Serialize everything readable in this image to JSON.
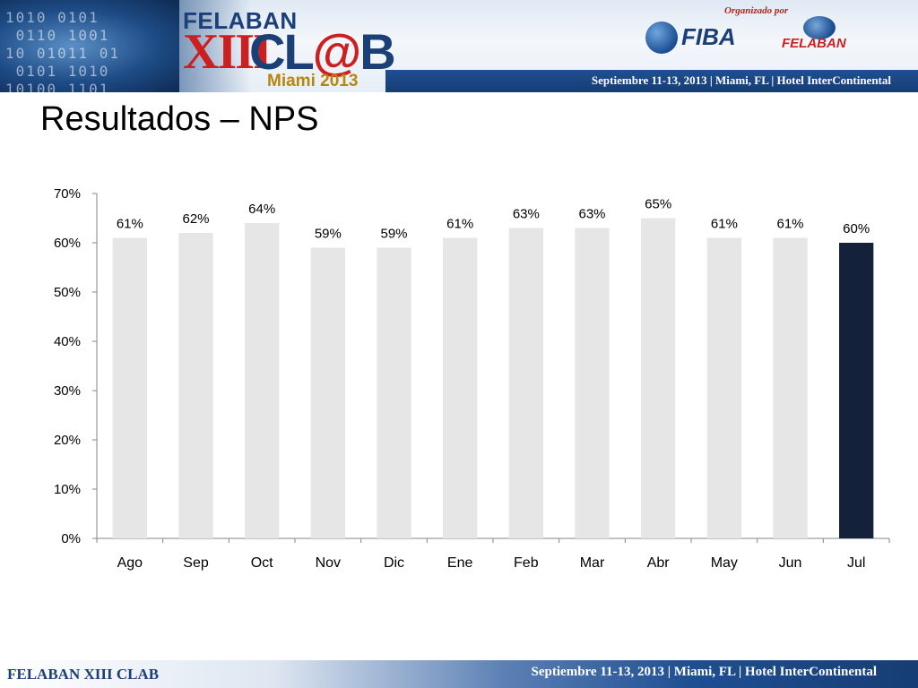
{
  "header": {
    "brand_top": "FELABAN",
    "brand_roman": "XIII",
    "brand_cl": "CL",
    "brand_at": "@",
    "brand_b": "B",
    "brand_city": "Miami 2013",
    "organized_by": "Organizado por",
    "logo_fiba": "FIBA",
    "logo_felaban": "FELABAN",
    "event_info": "Septiembre 11-13, 2013  |  Miami, FL  |  Hotel InterContinental"
  },
  "slide": {
    "title": "Resultados – NPS"
  },
  "chart_data": {
    "type": "bar",
    "categories": [
      "Ago",
      "Sep",
      "Oct",
      "Nov",
      "Dic",
      "Ene",
      "Feb",
      "Mar",
      "Abr",
      "May",
      "Jun",
      "Jul"
    ],
    "values": [
      61,
      62,
      64,
      59,
      59,
      61,
      63,
      63,
      65,
      61,
      61,
      60
    ],
    "data_labels": [
      "61%",
      "62%",
      "64%",
      "59%",
      "59%",
      "61%",
      "63%",
      "63%",
      "65%",
      "61%",
      "61%",
      "60%"
    ],
    "ylim": [
      0,
      70
    ],
    "yticks": [
      0,
      10,
      20,
      30,
      40,
      50,
      60,
      70
    ],
    "ytick_labels": [
      "0%",
      "10%",
      "20%",
      "30%",
      "40%",
      "50%",
      "60%",
      "70%"
    ],
    "bar_color": "#e6e6e6",
    "highlight_index": 11,
    "highlight_color": "#14213a",
    "grid": false,
    "legend": "none"
  },
  "footer": {
    "left": "FELABAN XIII CLAB",
    "right": "Septiembre 11-13, 2013  |  Miami, FL  |  Hotel InterContinental"
  }
}
